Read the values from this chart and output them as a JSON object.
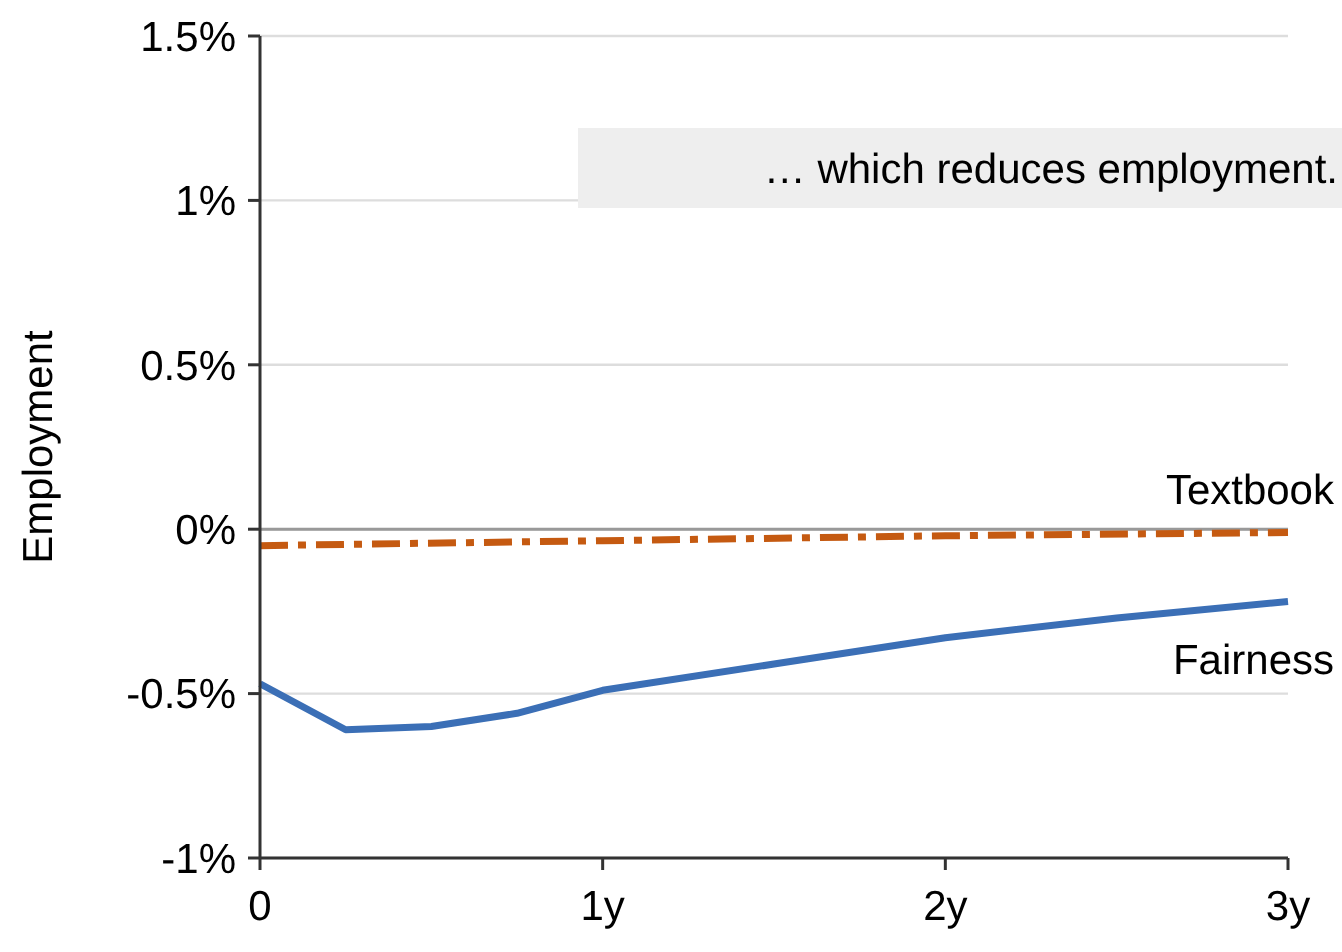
{
  "chart_data": {
    "type": "line",
    "ylabel": "Employment",
    "annotations": [
      "… which reduces employment."
    ],
    "xlim": [
      0,
      3
    ],
    "xticks": [
      0,
      {
        "value": 1,
        "label": "1y"
      },
      {
        "value": 2,
        "label": "2y"
      },
      {
        "value": 3,
        "label": "3y"
      }
    ],
    "ylim": [
      -1,
      1.5
    ],
    "yticks": [
      {
        "value": -1,
        "label": "-1%"
      },
      {
        "value": -0.5,
        "label": "-0.5%"
      },
      {
        "value": 0,
        "label": "0%"
      },
      {
        "value": 0.5,
        "label": "0.5%"
      },
      {
        "value": 1,
        "label": "1%"
      },
      {
        "value": 1.5,
        "label": "1.5%"
      }
    ],
    "grid": "y",
    "ref_lines": [
      {
        "axis": "y",
        "value": 0,
        "color": "#999999"
      }
    ],
    "series": [
      {
        "name": "Textbook",
        "color": "#c55a11",
        "line_style": "dashdot",
        "x": [
          0,
          1,
          2,
          3
        ],
        "values": [
          -0.05,
          -0.035,
          -0.02,
          -0.01
        ]
      },
      {
        "name": "Fairness",
        "color": "#3b6fb6",
        "line_style": "solid",
        "x": [
          0,
          0.25,
          0.5,
          0.75,
          1,
          1.5,
          2,
          2.5,
          3
        ],
        "values": [
          -0.47,
          -0.61,
          -0.6,
          -0.56,
          -0.49,
          -0.41,
          -0.33,
          -0.27,
          -0.22
        ]
      }
    ]
  }
}
